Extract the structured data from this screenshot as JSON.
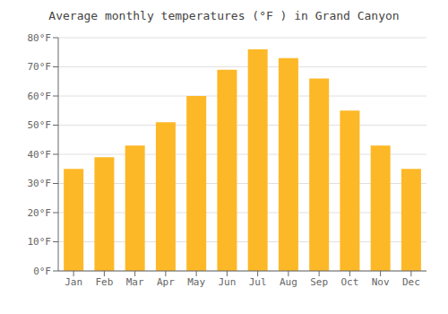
{
  "chart_data": {
    "type": "bar",
    "title": "Average monthly temperatures (°F ) in Grand Canyon",
    "categories": [
      "Jan",
      "Feb",
      "Mar",
      "Apr",
      "May",
      "Jun",
      "Jul",
      "Aug",
      "Sep",
      "Oct",
      "Nov",
      "Dec"
    ],
    "values": [
      35,
      39,
      43,
      51,
      60,
      69,
      76,
      73,
      66,
      55,
      43,
      35
    ],
    "color": "#FDB827",
    "ylim": [
      0,
      80
    ],
    "yticks": [
      {
        "value": 0,
        "label": "0°F"
      },
      {
        "value": 10,
        "label": "10°F"
      },
      {
        "value": 20,
        "label": "20°F"
      },
      {
        "value": 30,
        "label": "30°F"
      },
      {
        "value": 40,
        "label": "40°F"
      },
      {
        "value": 50,
        "label": "50°F"
      },
      {
        "value": 60,
        "label": "60°F"
      },
      {
        "value": 70,
        "label": "70°F"
      },
      {
        "value": 80,
        "label": "80°F"
      }
    ],
    "grid": true
  }
}
